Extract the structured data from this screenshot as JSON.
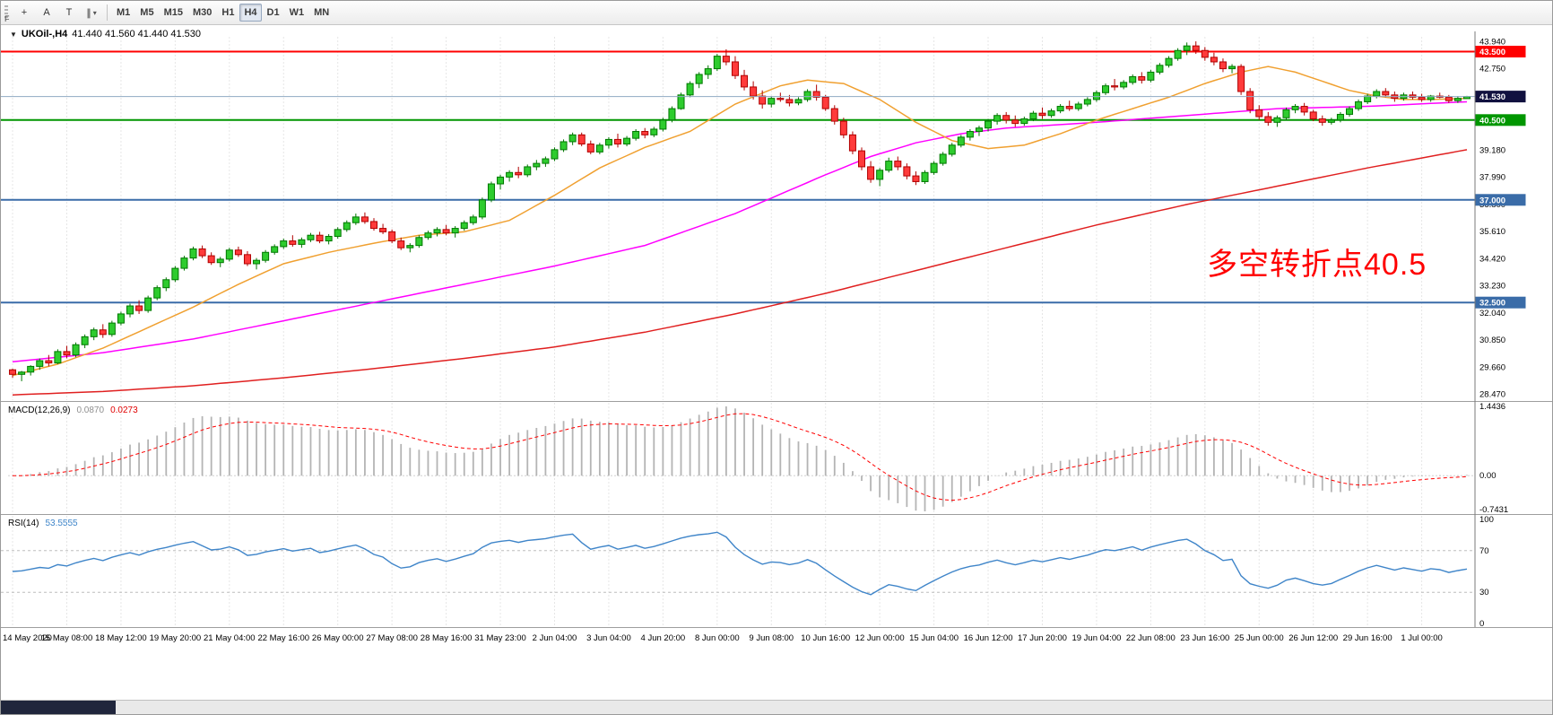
{
  "toolbar": {
    "fragment_label": "F",
    "tool_buttons": [
      {
        "icon": "crosshair-icon",
        "glyph": "+"
      },
      {
        "icon": "text-label-icon",
        "glyph": "A"
      },
      {
        "icon": "arrow-tool-icon",
        "glyph": "T"
      },
      {
        "icon": "line-studies-icon",
        "glyph": "∥",
        "chevron": "▾"
      }
    ],
    "timeframes": [
      "M1",
      "M5",
      "M15",
      "M30",
      "H1",
      "H4",
      "D1",
      "W1",
      "MN"
    ],
    "selected_timeframe": "H4"
  },
  "chart": {
    "symbol_label": "UKOil-,H4",
    "ohlc": "41.440 41.560 41.440 41.530",
    "annotation": "多空转折点40.5",
    "annotation_color": "#ff0000",
    "price_axis": {
      "ticks": [
        "43.940",
        "42.750",
        "41.560",
        "40.370",
        "39.180",
        "37.990",
        "36.800",
        "35.610",
        "34.420",
        "33.230",
        "32.040",
        "30.850",
        "29.660",
        "28.470"
      ]
    },
    "levels": [
      {
        "label": "43.500",
        "value": 43.5,
        "color": "#ff0000"
      },
      {
        "label": "40.500",
        "value": 40.5,
        "color": "#009600"
      },
      {
        "label": "37.000",
        "value": 37.0,
        "color": "#3a6ca8"
      },
      {
        "label": "32.500",
        "value": 32.5,
        "color": "#3a6ca8"
      }
    ],
    "current_price": {
      "label": "41.530",
      "value": 41.53,
      "badge_color": "#11113f",
      "line_color": "#8fa9c2"
    },
    "candle_colors": {
      "up": "#2ecc2e",
      "up_border": "#007700",
      "down": "#ff3b3b",
      "down_border": "#b00000"
    }
  },
  "macd_panel": {
    "name": "MACD(12,26,9)",
    "value_main": "0.0870",
    "value_signal": "0.0273",
    "axis": [
      "1.4436",
      "0.00",
      "-0.7431"
    ],
    "axis_values": [
      1.4436,
      0,
      -0.7431
    ],
    "colors": {
      "histogram": "#b4b4b4",
      "signal": "#ff0000"
    }
  },
  "rsi_panel": {
    "name": "RSI(14)",
    "value": "53.5555",
    "axis": [
      "100",
      "70",
      "30",
      "0"
    ],
    "axis_values": [
      100,
      70,
      30,
      0
    ],
    "levels": [
      70,
      30
    ],
    "color": "#3f85c9"
  },
  "chart_data": {
    "type": "candlestick",
    "title": "UKOil- H4",
    "price_range": [
      28.3,
      44.15
    ],
    "macd_range": [
      -0.7431,
      1.4436
    ],
    "x_labels": [
      "14 May 2020",
      "15 May 08:00",
      "18 May 12:00",
      "19 May 20:00",
      "21 May 04:00",
      "22 May 16:00",
      "26 May 00:00",
      "27 May 08:00",
      "28 May 16:00",
      "31 May 23:00",
      "2 Jun 04:00",
      "3 Jun 04:00",
      "4 Jun 20:00",
      "8 Jun 00:00",
      "9 Jun 08:00",
      "10 Jun 16:00",
      "12 Jun 00:00",
      "15 Jun 04:00",
      "16 Jun 12:00",
      "17 Jun 20:00",
      "19 Jun 04:00",
      "22 Jun 08:00",
      "23 Jun 16:00",
      "25 Jun 00:00",
      "26 Jun 12:00",
      "29 Jun 16:00",
      "1 Jul 00:00"
    ],
    "candles": [
      [
        29.55,
        29.6,
        29.2,
        29.35
      ],
      [
        29.35,
        29.5,
        29.05,
        29.45
      ],
      [
        29.45,
        29.75,
        29.3,
        29.7
      ],
      [
        29.7,
        30.05,
        29.55,
        29.95
      ],
      [
        29.95,
        30.2,
        29.7,
        29.85
      ],
      [
        29.85,
        30.45,
        29.8,
        30.35
      ],
      [
        30.35,
        30.6,
        30.05,
        30.2
      ],
      [
        30.2,
        30.75,
        30.1,
        30.65
      ],
      [
        30.65,
        31.1,
        30.5,
        31.0
      ],
      [
        31.0,
        31.4,
        30.85,
        31.3
      ],
      [
        31.3,
        31.55,
        30.95,
        31.1
      ],
      [
        31.1,
        31.7,
        31.0,
        31.6
      ],
      [
        31.6,
        32.1,
        31.5,
        32.0
      ],
      [
        32.0,
        32.45,
        31.85,
        32.35
      ],
      [
        32.35,
        32.6,
        32.0,
        32.15
      ],
      [
        32.15,
        32.8,
        32.05,
        32.7
      ],
      [
        32.7,
        33.25,
        32.6,
        33.15
      ],
      [
        33.15,
        33.6,
        33.0,
        33.5
      ],
      [
        33.5,
        34.1,
        33.4,
        34.0
      ],
      [
        34.0,
        34.55,
        33.9,
        34.45
      ],
      [
        34.45,
        34.95,
        34.35,
        34.85
      ],
      [
        34.85,
        35.0,
        34.45,
        34.55
      ],
      [
        34.55,
        34.7,
        34.15,
        34.25
      ],
      [
        34.25,
        34.5,
        34.05,
        34.4
      ],
      [
        34.4,
        34.9,
        34.3,
        34.8
      ],
      [
        34.8,
        34.95,
        34.5,
        34.6
      ],
      [
        34.6,
        34.75,
        34.1,
        34.2
      ],
      [
        34.2,
        34.45,
        33.95,
        34.35
      ],
      [
        34.35,
        34.8,
        34.25,
        34.7
      ],
      [
        34.7,
        35.05,
        34.6,
        34.95
      ],
      [
        34.95,
        35.3,
        34.85,
        35.2
      ],
      [
        35.2,
        35.45,
        34.95,
        35.05
      ],
      [
        35.05,
        35.35,
        34.9,
        35.25
      ],
      [
        35.25,
        35.55,
        35.15,
        35.45
      ],
      [
        35.45,
        35.6,
        35.1,
        35.2
      ],
      [
        35.2,
        35.5,
        35.05,
        35.4
      ],
      [
        35.4,
        35.8,
        35.3,
        35.7
      ],
      [
        35.7,
        36.1,
        35.6,
        36.0
      ],
      [
        36.0,
        36.4,
        35.9,
        36.25
      ],
      [
        36.25,
        36.45,
        35.95,
        36.05
      ],
      [
        36.05,
        36.2,
        35.65,
        35.75
      ],
      [
        35.75,
        35.95,
        35.5,
        35.6
      ],
      [
        35.6,
        35.7,
        35.1,
        35.2
      ],
      [
        35.2,
        35.35,
        34.8,
        34.9
      ],
      [
        34.9,
        35.1,
        34.7,
        35.0
      ],
      [
        35.0,
        35.45,
        34.9,
        35.35
      ],
      [
        35.35,
        35.65,
        35.25,
        35.55
      ],
      [
        35.55,
        35.8,
        35.4,
        35.7
      ],
      [
        35.7,
        35.9,
        35.45,
        35.55
      ],
      [
        35.55,
        35.85,
        35.35,
        35.75
      ],
      [
        35.75,
        36.1,
        35.65,
        36.0
      ],
      [
        36.0,
        36.35,
        35.9,
        36.25
      ],
      [
        36.25,
        37.1,
        36.15,
        37.0
      ],
      [
        37.0,
        37.8,
        36.9,
        37.7
      ],
      [
        37.7,
        38.1,
        37.45,
        38.0
      ],
      [
        38.0,
        38.3,
        37.8,
        38.2
      ],
      [
        38.2,
        38.45,
        37.95,
        38.1
      ],
      [
        38.1,
        38.55,
        38.0,
        38.45
      ],
      [
        38.45,
        38.75,
        38.3,
        38.6
      ],
      [
        38.6,
        38.9,
        38.45,
        38.8
      ],
      [
        38.8,
        39.3,
        38.7,
        39.2
      ],
      [
        39.2,
        39.65,
        39.1,
        39.55
      ],
      [
        39.55,
        39.95,
        39.4,
        39.85
      ],
      [
        39.85,
        39.95,
        39.35,
        39.45
      ],
      [
        39.45,
        39.6,
        39.0,
        39.1
      ],
      [
        39.1,
        39.5,
        39.0,
        39.4
      ],
      [
        39.4,
        39.75,
        39.25,
        39.65
      ],
      [
        39.65,
        39.9,
        39.3,
        39.45
      ],
      [
        39.45,
        39.8,
        39.35,
        39.7
      ],
      [
        39.7,
        40.1,
        39.6,
        40.0
      ],
      [
        40.0,
        40.15,
        39.7,
        39.85
      ],
      [
        39.85,
        40.2,
        39.75,
        40.1
      ],
      [
        40.1,
        40.6,
        40.0,
        40.5
      ],
      [
        40.5,
        41.1,
        40.4,
        41.0
      ],
      [
        41.0,
        41.7,
        40.95,
        41.6
      ],
      [
        41.6,
        42.2,
        41.5,
        42.1
      ],
      [
        42.1,
        42.6,
        41.9,
        42.5
      ],
      [
        42.5,
        42.9,
        42.3,
        42.75
      ],
      [
        42.75,
        43.4,
        42.65,
        43.3
      ],
      [
        43.3,
        43.6,
        42.9,
        43.05
      ],
      [
        43.05,
        43.3,
        42.3,
        42.45
      ],
      [
        42.45,
        42.7,
        41.8,
        41.95
      ],
      [
        41.95,
        42.2,
        41.4,
        41.55
      ],
      [
        41.55,
        41.8,
        41.0,
        41.2
      ],
      [
        41.2,
        41.55,
        41.05,
        41.45
      ],
      [
        41.45,
        41.7,
        41.3,
        41.4
      ],
      [
        41.4,
        41.6,
        41.1,
        41.25
      ],
      [
        41.25,
        41.5,
        41.15,
        41.4
      ],
      [
        41.4,
        41.85,
        41.3,
        41.75
      ],
      [
        41.75,
        42.05,
        41.35,
        41.5
      ],
      [
        41.5,
        41.6,
        40.9,
        41.0
      ],
      [
        41.0,
        41.15,
        40.3,
        40.45
      ],
      [
        40.45,
        40.6,
        39.7,
        39.85
      ],
      [
        39.85,
        40.0,
        39.0,
        39.15
      ],
      [
        39.15,
        39.3,
        38.3,
        38.45
      ],
      [
        38.45,
        38.7,
        37.75,
        37.9
      ],
      [
        37.9,
        38.4,
        37.6,
        38.3
      ],
      [
        38.3,
        38.85,
        38.2,
        38.7
      ],
      [
        38.7,
        38.9,
        38.3,
        38.45
      ],
      [
        38.45,
        38.6,
        37.9,
        38.05
      ],
      [
        38.05,
        38.25,
        37.65,
        37.8
      ],
      [
        37.8,
        38.3,
        37.7,
        38.2
      ],
      [
        38.2,
        38.7,
        38.1,
        38.6
      ],
      [
        38.6,
        39.1,
        38.5,
        39.0
      ],
      [
        39.0,
        39.5,
        38.9,
        39.4
      ],
      [
        39.4,
        39.85,
        39.3,
        39.75
      ],
      [
        39.75,
        40.1,
        39.6,
        40.0
      ],
      [
        40.0,
        40.25,
        39.8,
        40.15
      ],
      [
        40.15,
        40.55,
        40.0,
        40.45
      ],
      [
        40.45,
        40.8,
        40.3,
        40.7
      ],
      [
        40.7,
        40.85,
        40.35,
        40.5
      ],
      [
        40.5,
        40.7,
        40.2,
        40.35
      ],
      [
        40.35,
        40.65,
        40.25,
        40.55
      ],
      [
        40.55,
        40.9,
        40.45,
        40.8
      ],
      [
        40.8,
        41.05,
        40.55,
        40.7
      ],
      [
        40.7,
        41.0,
        40.6,
        40.9
      ],
      [
        40.9,
        41.2,
        40.8,
        41.1
      ],
      [
        41.1,
        41.35,
        40.9,
        41.0
      ],
      [
        41.0,
        41.3,
        40.9,
        41.2
      ],
      [
        41.2,
        41.5,
        41.1,
        41.4
      ],
      [
        41.4,
        41.8,
        41.3,
        41.7
      ],
      [
        41.7,
        42.1,
        41.6,
        42.0
      ],
      [
        42.0,
        42.3,
        41.8,
        41.95
      ],
      [
        41.95,
        42.25,
        41.85,
        42.15
      ],
      [
        42.15,
        42.5,
        42.05,
        42.4
      ],
      [
        42.4,
        42.6,
        42.1,
        42.25
      ],
      [
        42.25,
        42.7,
        42.15,
        42.6
      ],
      [
        42.6,
        43.0,
        42.5,
        42.9
      ],
      [
        42.9,
        43.3,
        42.8,
        43.2
      ],
      [
        43.2,
        43.65,
        43.1,
        43.55
      ],
      [
        43.55,
        43.9,
        43.35,
        43.75
      ],
      [
        43.75,
        43.95,
        43.4,
        43.55
      ],
      [
        43.55,
        43.7,
        43.1,
        43.25
      ],
      [
        43.25,
        43.45,
        42.9,
        43.05
      ],
      [
        43.05,
        43.2,
        42.6,
        42.75
      ],
      [
        42.75,
        42.95,
        42.55,
        42.85
      ],
      [
        42.85,
        42.95,
        41.6,
        41.75
      ],
      [
        41.75,
        41.9,
        40.8,
        40.95
      ],
      [
        40.95,
        41.15,
        40.5,
        40.65
      ],
      [
        40.65,
        40.85,
        40.25,
        40.4
      ],
      [
        40.4,
        40.7,
        40.2,
        40.6
      ],
      [
        40.6,
        41.05,
        40.5,
        40.95
      ],
      [
        40.95,
        41.2,
        40.8,
        41.1
      ],
      [
        41.1,
        41.25,
        40.7,
        40.85
      ],
      [
        40.85,
        40.95,
        40.45,
        40.55
      ],
      [
        40.55,
        40.7,
        40.25,
        40.4
      ],
      [
        40.4,
        40.6,
        40.3,
        40.5
      ],
      [
        40.5,
        40.85,
        40.4,
        40.75
      ],
      [
        40.75,
        41.1,
        40.65,
        41.0
      ],
      [
        41.0,
        41.4,
        40.9,
        41.3
      ],
      [
        41.3,
        41.65,
        41.2,
        41.55
      ],
      [
        41.55,
        41.85,
        41.45,
        41.75
      ],
      [
        41.75,
        41.9,
        41.5,
        41.6
      ],
      [
        41.6,
        41.75,
        41.3,
        41.45
      ],
      [
        41.45,
        41.7,
        41.35,
        41.6
      ],
      [
        41.6,
        41.75,
        41.4,
        41.5
      ],
      [
        41.5,
        41.65,
        41.3,
        41.4
      ],
      [
        41.4,
        41.6,
        41.3,
        41.55
      ],
      [
        41.55,
        41.7,
        41.45,
        41.5
      ],
      [
        41.5,
        41.6,
        41.25,
        41.35
      ],
      [
        41.35,
        41.55,
        41.25,
        41.45
      ],
      [
        41.44,
        41.56,
        41.44,
        41.53
      ]
    ],
    "moving_averages": [
      {
        "name": "ma-slow",
        "color": "#e02020",
        "anchors": [
          [
            0,
            28.45
          ],
          [
            10,
            28.6
          ],
          [
            20,
            28.85
          ],
          [
            30,
            29.2
          ],
          [
            40,
            29.6
          ],
          [
            50,
            30.05
          ],
          [
            60,
            30.55
          ],
          [
            70,
            31.2
          ],
          [
            80,
            32.0
          ],
          [
            90,
            32.9
          ],
          [
            100,
            33.9
          ],
          [
            110,
            34.9
          ],
          [
            120,
            35.9
          ],
          [
            130,
            36.8
          ],
          [
            140,
            37.6
          ],
          [
            150,
            38.4
          ],
          [
            161,
            39.2
          ]
        ]
      },
      {
        "name": "ma-medium",
        "color": "#ff00ff",
        "anchors": [
          [
            0,
            29.9
          ],
          [
            10,
            30.3
          ],
          [
            20,
            30.9
          ],
          [
            30,
            31.7
          ],
          [
            40,
            32.5
          ],
          [
            50,
            33.3
          ],
          [
            60,
            34.1
          ],
          [
            70,
            35.0
          ],
          [
            80,
            36.4
          ],
          [
            90,
            38.1
          ],
          [
            95,
            38.9
          ],
          [
            100,
            39.5
          ],
          [
            105,
            39.9
          ],
          [
            110,
            40.15
          ],
          [
            120,
            40.4
          ],
          [
            130,
            40.7
          ],
          [
            140,
            41.0
          ],
          [
            150,
            41.1
          ],
          [
            161,
            41.3
          ]
        ]
      },
      {
        "name": "ma-fast",
        "color": "#f0a030",
        "anchors": [
          [
            0,
            29.3
          ],
          [
            5,
            29.8
          ],
          [
            10,
            30.5
          ],
          [
            15,
            31.4
          ],
          [
            20,
            32.3
          ],
          [
            25,
            33.3
          ],
          [
            30,
            34.2
          ],
          [
            35,
            34.7
          ],
          [
            40,
            35.1
          ],
          [
            45,
            35.45
          ],
          [
            50,
            35.6
          ],
          [
            55,
            36.1
          ],
          [
            60,
            37.2
          ],
          [
            65,
            38.4
          ],
          [
            70,
            39.3
          ],
          [
            75,
            40.0
          ],
          [
            80,
            41.2
          ],
          [
            85,
            42.0
          ],
          [
            88,
            42.25
          ],
          [
            92,
            42.1
          ],
          [
            96,
            41.4
          ],
          [
            100,
            40.4
          ],
          [
            104,
            39.6
          ],
          [
            108,
            39.25
          ],
          [
            112,
            39.4
          ],
          [
            116,
            39.9
          ],
          [
            120,
            40.5
          ],
          [
            124,
            41.0
          ],
          [
            128,
            41.5
          ],
          [
            132,
            42.1
          ],
          [
            136,
            42.6
          ],
          [
            139,
            42.85
          ],
          [
            142,
            42.6
          ],
          [
            145,
            42.2
          ],
          [
            148,
            41.8
          ],
          [
            151,
            41.55
          ],
          [
            154,
            41.4
          ],
          [
            157,
            41.4
          ],
          [
            161,
            41.45
          ]
        ]
      }
    ]
  }
}
